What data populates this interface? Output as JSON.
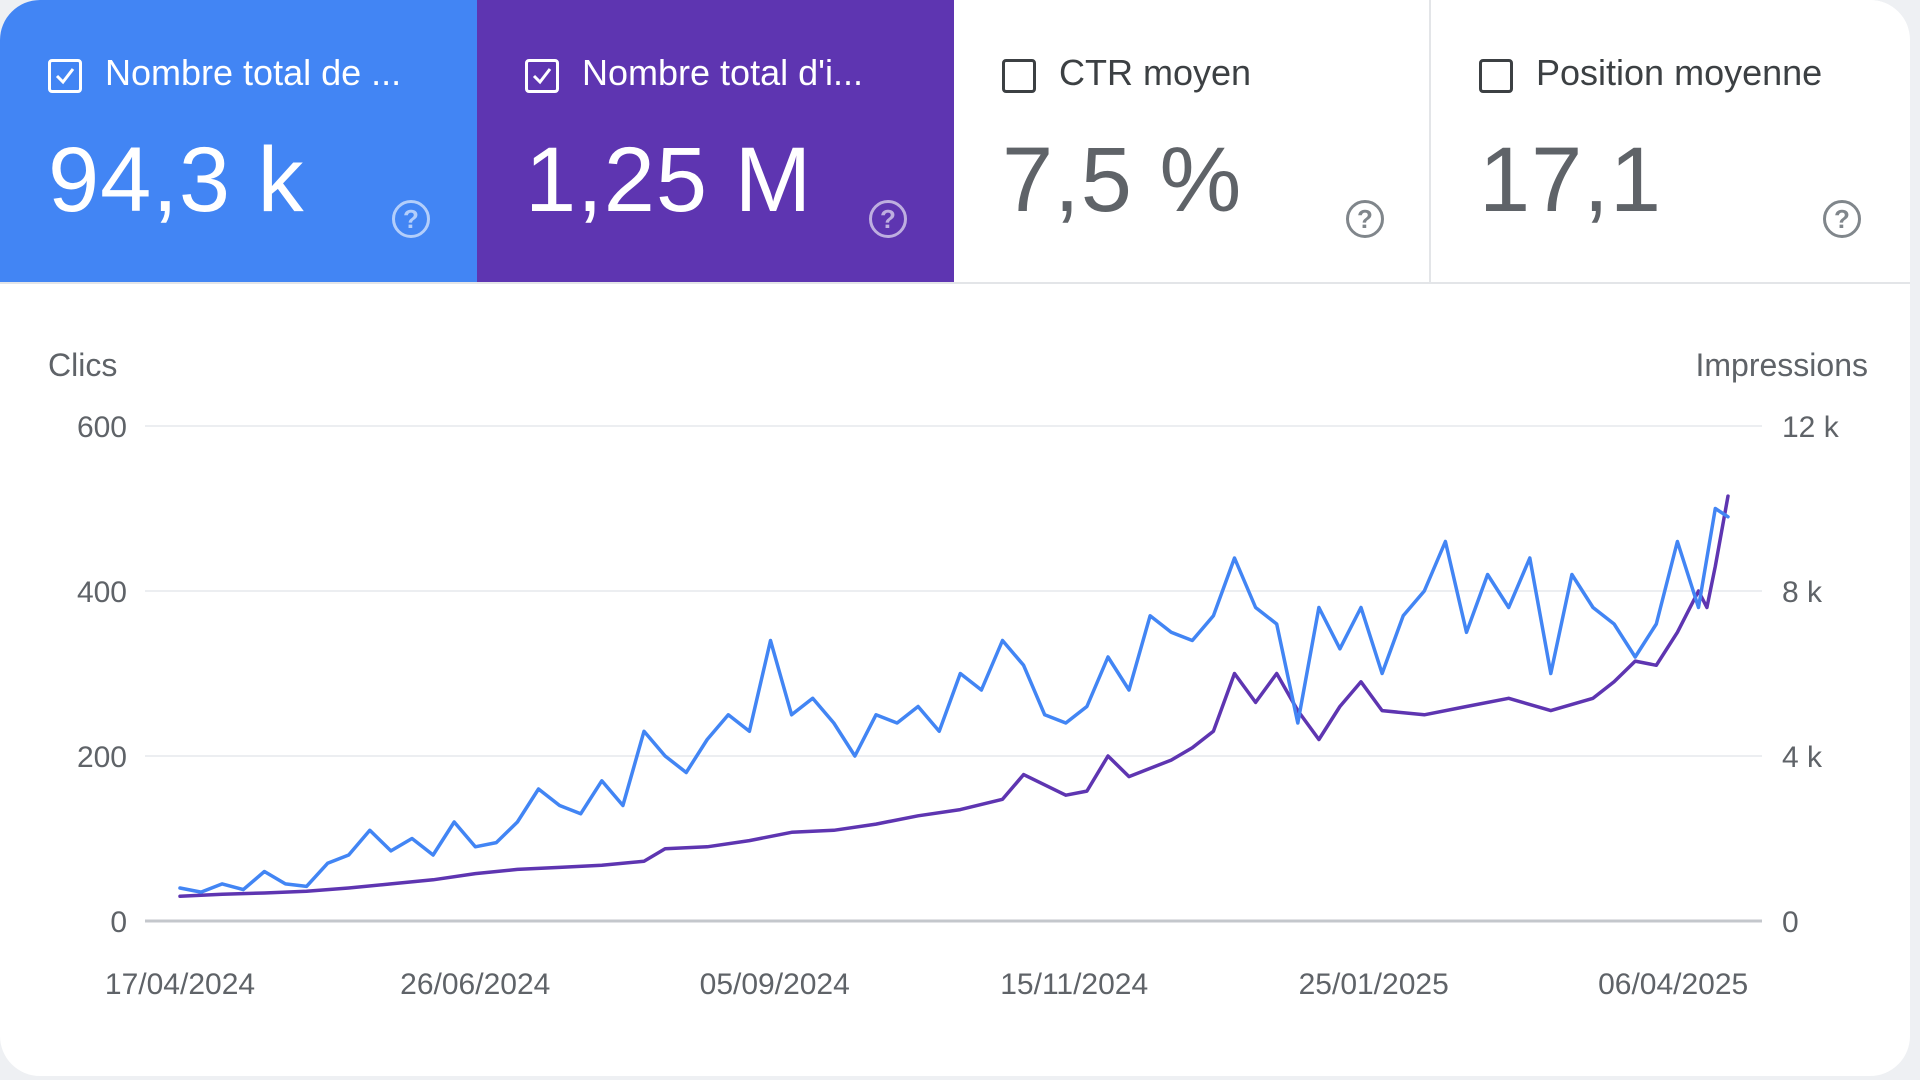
{
  "metrics": [
    {
      "label": "Nombre total de ...",
      "value": "94,3 k",
      "checked": true,
      "color": "#4285f4"
    },
    {
      "label": "Nombre total d'i...",
      "value": "1,25 M",
      "checked": true,
      "color": "#5e35b1"
    },
    {
      "label": "CTR moyen",
      "value": "7,5 %",
      "checked": false,
      "color": "#ffffff"
    },
    {
      "label": "Position moyenne",
      "value": "17,1",
      "checked": false,
      "color": "#ffffff"
    }
  ],
  "help_glyph": "?",
  "chart_data": {
    "type": "line",
    "left_axis": {
      "label": "Clics",
      "ylim": [
        0,
        600
      ],
      "ticks": [
        0,
        200,
        400,
        600
      ],
      "tick_labels": [
        "0",
        "200",
        "400",
        "600"
      ]
    },
    "right_axis": {
      "label": "Impressions",
      "ylim": [
        0,
        12000
      ],
      "ticks": [
        0,
        4000,
        8000,
        12000
      ],
      "tick_labels": [
        "0",
        "4 k",
        "8 k",
        "12 k"
      ]
    },
    "x_range": [
      "2024-04-17",
      "2025-04-19"
    ],
    "x_ticks": [
      {
        "date": "2024-04-17",
        "label": "17/04/2024"
      },
      {
        "date": "2024-06-26",
        "label": "26/06/2024"
      },
      {
        "date": "2024-09-05",
        "label": "05/09/2024"
      },
      {
        "date": "2024-11-15",
        "label": "15/11/2024"
      },
      {
        "date": "2025-01-25",
        "label": "25/01/2025"
      },
      {
        "date": "2025-04-06",
        "label": "06/04/2025"
      }
    ],
    "grid": true,
    "series": [
      {
        "axis": "left",
        "color": "#4285f4",
        "points": [
          [
            "2024-04-17",
            40
          ],
          [
            "2024-04-22",
            35
          ],
          [
            "2024-04-27",
            45
          ],
          [
            "2024-05-02",
            38
          ],
          [
            "2024-05-07",
            60
          ],
          [
            "2024-05-12",
            45
          ],
          [
            "2024-05-17",
            42
          ],
          [
            "2024-05-22",
            70
          ],
          [
            "2024-05-27",
            80
          ],
          [
            "2024-06-01",
            110
          ],
          [
            "2024-06-06",
            85
          ],
          [
            "2024-06-11",
            100
          ],
          [
            "2024-06-16",
            80
          ],
          [
            "2024-06-21",
            120
          ],
          [
            "2024-06-26",
            90
          ],
          [
            "2024-07-01",
            95
          ],
          [
            "2024-07-06",
            120
          ],
          [
            "2024-07-11",
            160
          ],
          [
            "2024-07-16",
            140
          ],
          [
            "2024-07-21",
            130
          ],
          [
            "2024-07-26",
            170
          ],
          [
            "2024-07-31",
            140
          ],
          [
            "2024-08-05",
            230
          ],
          [
            "2024-08-10",
            200
          ],
          [
            "2024-08-15",
            180
          ],
          [
            "2024-08-20",
            220
          ],
          [
            "2024-08-25",
            250
          ],
          [
            "2024-08-30",
            230
          ],
          [
            "2024-09-04",
            340
          ],
          [
            "2024-09-09",
            250
          ],
          [
            "2024-09-14",
            270
          ],
          [
            "2024-09-19",
            240
          ],
          [
            "2024-09-24",
            200
          ],
          [
            "2024-09-29",
            250
          ],
          [
            "2024-10-04",
            240
          ],
          [
            "2024-10-09",
            260
          ],
          [
            "2024-10-14",
            230
          ],
          [
            "2024-10-19",
            300
          ],
          [
            "2024-10-24",
            280
          ],
          [
            "2024-10-29",
            340
          ],
          [
            "2024-11-03",
            310
          ],
          [
            "2024-11-08",
            250
          ],
          [
            "2024-11-13",
            240
          ],
          [
            "2024-11-18",
            260
          ],
          [
            "2024-11-23",
            320
          ],
          [
            "2024-11-28",
            280
          ],
          [
            "2024-12-03",
            370
          ],
          [
            "2024-12-08",
            350
          ],
          [
            "2024-12-13",
            340
          ],
          [
            "2024-12-18",
            370
          ],
          [
            "2024-12-23",
            440
          ],
          [
            "2024-12-28",
            380
          ],
          [
            "2025-01-02",
            360
          ],
          [
            "2025-01-07",
            240
          ],
          [
            "2025-01-12",
            380
          ],
          [
            "2025-01-17",
            330
          ],
          [
            "2025-01-22",
            380
          ],
          [
            "2025-01-27",
            300
          ],
          [
            "2025-02-01",
            370
          ],
          [
            "2025-02-06",
            400
          ],
          [
            "2025-02-11",
            460
          ],
          [
            "2025-02-16",
            350
          ],
          [
            "2025-02-21",
            420
          ],
          [
            "2025-02-26",
            380
          ],
          [
            "2025-03-03",
            440
          ],
          [
            "2025-03-08",
            300
          ],
          [
            "2025-03-13",
            420
          ],
          [
            "2025-03-18",
            380
          ],
          [
            "2025-03-23",
            360
          ],
          [
            "2025-03-28",
            320
          ],
          [
            "2025-04-02",
            360
          ],
          [
            "2025-04-07",
            460
          ],
          [
            "2025-04-12",
            380
          ],
          [
            "2025-04-16",
            500
          ],
          [
            "2025-04-19",
            490
          ]
        ]
      },
      {
        "axis": "right",
        "color": "#5e35b1",
        "points": [
          [
            "2024-04-17",
            600
          ],
          [
            "2024-04-27",
            650
          ],
          [
            "2024-05-07",
            680
          ],
          [
            "2024-05-17",
            720
          ],
          [
            "2024-05-27",
            800
          ],
          [
            "2024-06-06",
            900
          ],
          [
            "2024-06-16",
            1000
          ],
          [
            "2024-06-26",
            1150
          ],
          [
            "2024-07-06",
            1250
          ],
          [
            "2024-07-16",
            1300
          ],
          [
            "2024-07-26",
            1350
          ],
          [
            "2024-08-05",
            1450
          ],
          [
            "2024-08-10",
            1750
          ],
          [
            "2024-08-20",
            1800
          ],
          [
            "2024-08-30",
            1950
          ],
          [
            "2024-09-09",
            2150
          ],
          [
            "2024-09-19",
            2200
          ],
          [
            "2024-09-29",
            2350
          ],
          [
            "2024-10-09",
            2550
          ],
          [
            "2024-10-19",
            2700
          ],
          [
            "2024-10-29",
            2950
          ],
          [
            "2024-11-03",
            3550
          ],
          [
            "2024-11-13",
            3050
          ],
          [
            "2024-11-18",
            3150
          ],
          [
            "2024-11-23",
            4000
          ],
          [
            "2024-11-28",
            3500
          ],
          [
            "2024-12-08",
            3900
          ],
          [
            "2024-12-13",
            4200
          ],
          [
            "2024-12-18",
            4600
          ],
          [
            "2024-12-23",
            6000
          ],
          [
            "2024-12-28",
            5300
          ],
          [
            "2025-01-02",
            6000
          ],
          [
            "2025-01-07",
            5100
          ],
          [
            "2025-01-12",
            4400
          ],
          [
            "2025-01-17",
            5200
          ],
          [
            "2025-01-22",
            5800
          ],
          [
            "2025-01-27",
            5100
          ],
          [
            "2025-02-06",
            5000
          ],
          [
            "2025-02-16",
            5200
          ],
          [
            "2025-02-26",
            5400
          ],
          [
            "2025-03-08",
            5100
          ],
          [
            "2025-03-18",
            5400
          ],
          [
            "2025-03-23",
            5800
          ],
          [
            "2025-03-28",
            6300
          ],
          [
            "2025-04-02",
            6200
          ],
          [
            "2025-04-07",
            7000
          ],
          [
            "2025-04-12",
            8000
          ],
          [
            "2025-04-14",
            7600
          ],
          [
            "2025-04-16",
            8600
          ],
          [
            "2025-04-19",
            10300
          ]
        ]
      }
    ]
  }
}
